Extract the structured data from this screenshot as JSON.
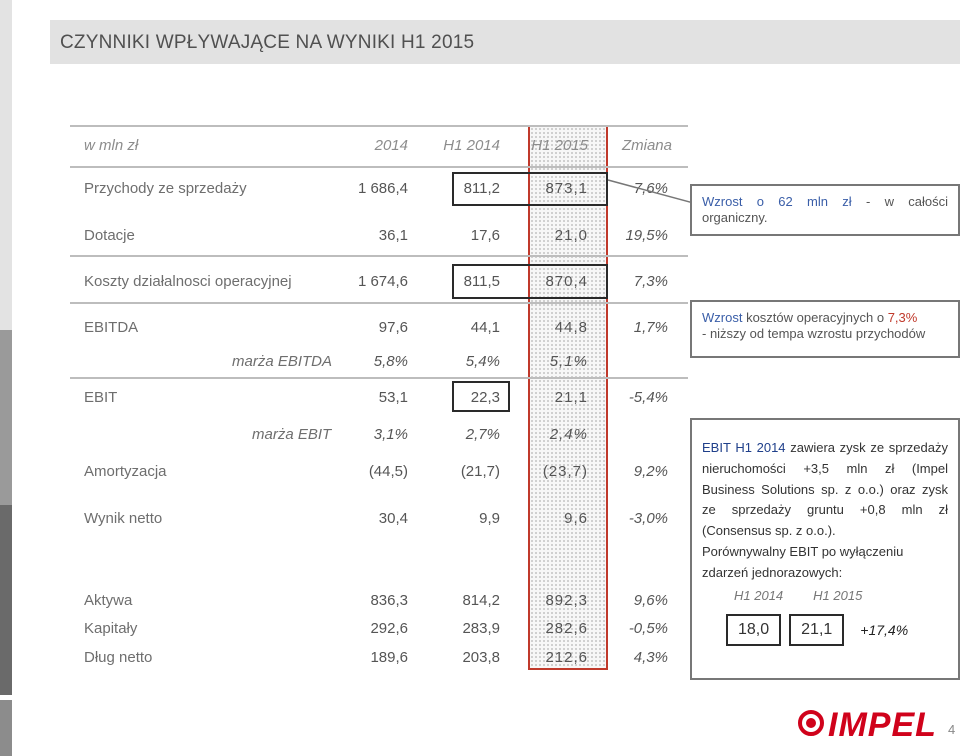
{
  "title": "CZYNNIKI WPŁYWAJĄCE NA WYNIKI H1 2015",
  "header": {
    "label": "w mln zł",
    "col1": "2014",
    "col2": "H1 2014",
    "col3": "H1 2015",
    "col4": "Zmiana"
  },
  "rows": [
    {
      "label": "Przychody ze sprzedaży",
      "v1": "1 686,4",
      "v2": "811,2",
      "v3": "873,1",
      "v4": "7,6%"
    },
    {
      "label": "Dotacje",
      "v1": "36,1",
      "v2": "17,6",
      "v3": "21,0",
      "v4": "19,5%"
    },
    {
      "label": "Koszty działalnosci operacyjnej",
      "v1": "1 674,6",
      "v2": "811,5",
      "v3": "870,4",
      "v4": "7,3%"
    },
    {
      "label": "EBITDA",
      "v1": "97,6",
      "v2": "44,1",
      "v3": "44,8",
      "v4": "1,7%"
    },
    {
      "label": "marża EBITDA",
      "v1": "5,8%",
      "v2": "5,4%",
      "v3": "5,1%",
      "v4": ""
    },
    {
      "label": "EBIT",
      "v1": "53,1",
      "v2": "22,3",
      "v3": "21,1",
      "v4": "-5,4%"
    },
    {
      "label": "marża EBIT",
      "v1": "3,1%",
      "v2": "2,7%",
      "v3": "2,4%",
      "v4": ""
    },
    {
      "label": "Amortyzacja",
      "v1": "(44,5)",
      "v2": "(21,7)",
      "v3": "(23,7)",
      "v4": "9,2%"
    },
    {
      "label": "Wynik netto",
      "v1": "30,4",
      "v2": "9,9",
      "v3": "9,6",
      "v4": "-3,0%"
    },
    {
      "label": "Aktywa",
      "v1": "836,3",
      "v2": "814,2",
      "v3": "892,3",
      "v4": "9,6%"
    },
    {
      "label": "Kapitały",
      "v1": "292,6",
      "v2": "283,9",
      "v3": "282,6",
      "v4": "-0,5%"
    },
    {
      "label": "Dług netto",
      "v1": "189,6",
      "v2": "203,8",
      "v3": "212,6",
      "v4": "4,3%"
    }
  ],
  "notes": {
    "revenue": {
      "prefix": "Wzrost o ",
      "amount": "62 mln zł",
      "suffix": " - w całości organiczny."
    },
    "costs": {
      "prefix": "Wzrost",
      "text": " kosztów operacyjnych o ",
      "pct": "7,3%",
      "line2": "- niższy od tempa wzrostu przychodów"
    },
    "ebit": {
      "text1_lead": "EBIT H1 2014",
      "text1": " zawiera zysk ze sprzedaży nieruchomości +3,5 mln zł (Impel Business Solutions sp. z o.o.) oraz zysk ze sprzedaży gruntu +0,8 mln zł (Consensus sp. z o.o.).",
      "text2": "Porównywalny EBIT po wyłączeniu zdarzeń jednorazowych:",
      "col_a": "H1 2014",
      "col_b": "H1 2015",
      "val_a": "18,0",
      "val_b": "21,1",
      "change": "+17,4%"
    }
  },
  "logo_text": "IMPEL",
  "page_number": "4",
  "colors": {
    "accent_red": "#c0392b",
    "note_blue": "#3a5ea8",
    "title_bg": "#e2e2e2",
    "logo_red": "#d0021b"
  }
}
